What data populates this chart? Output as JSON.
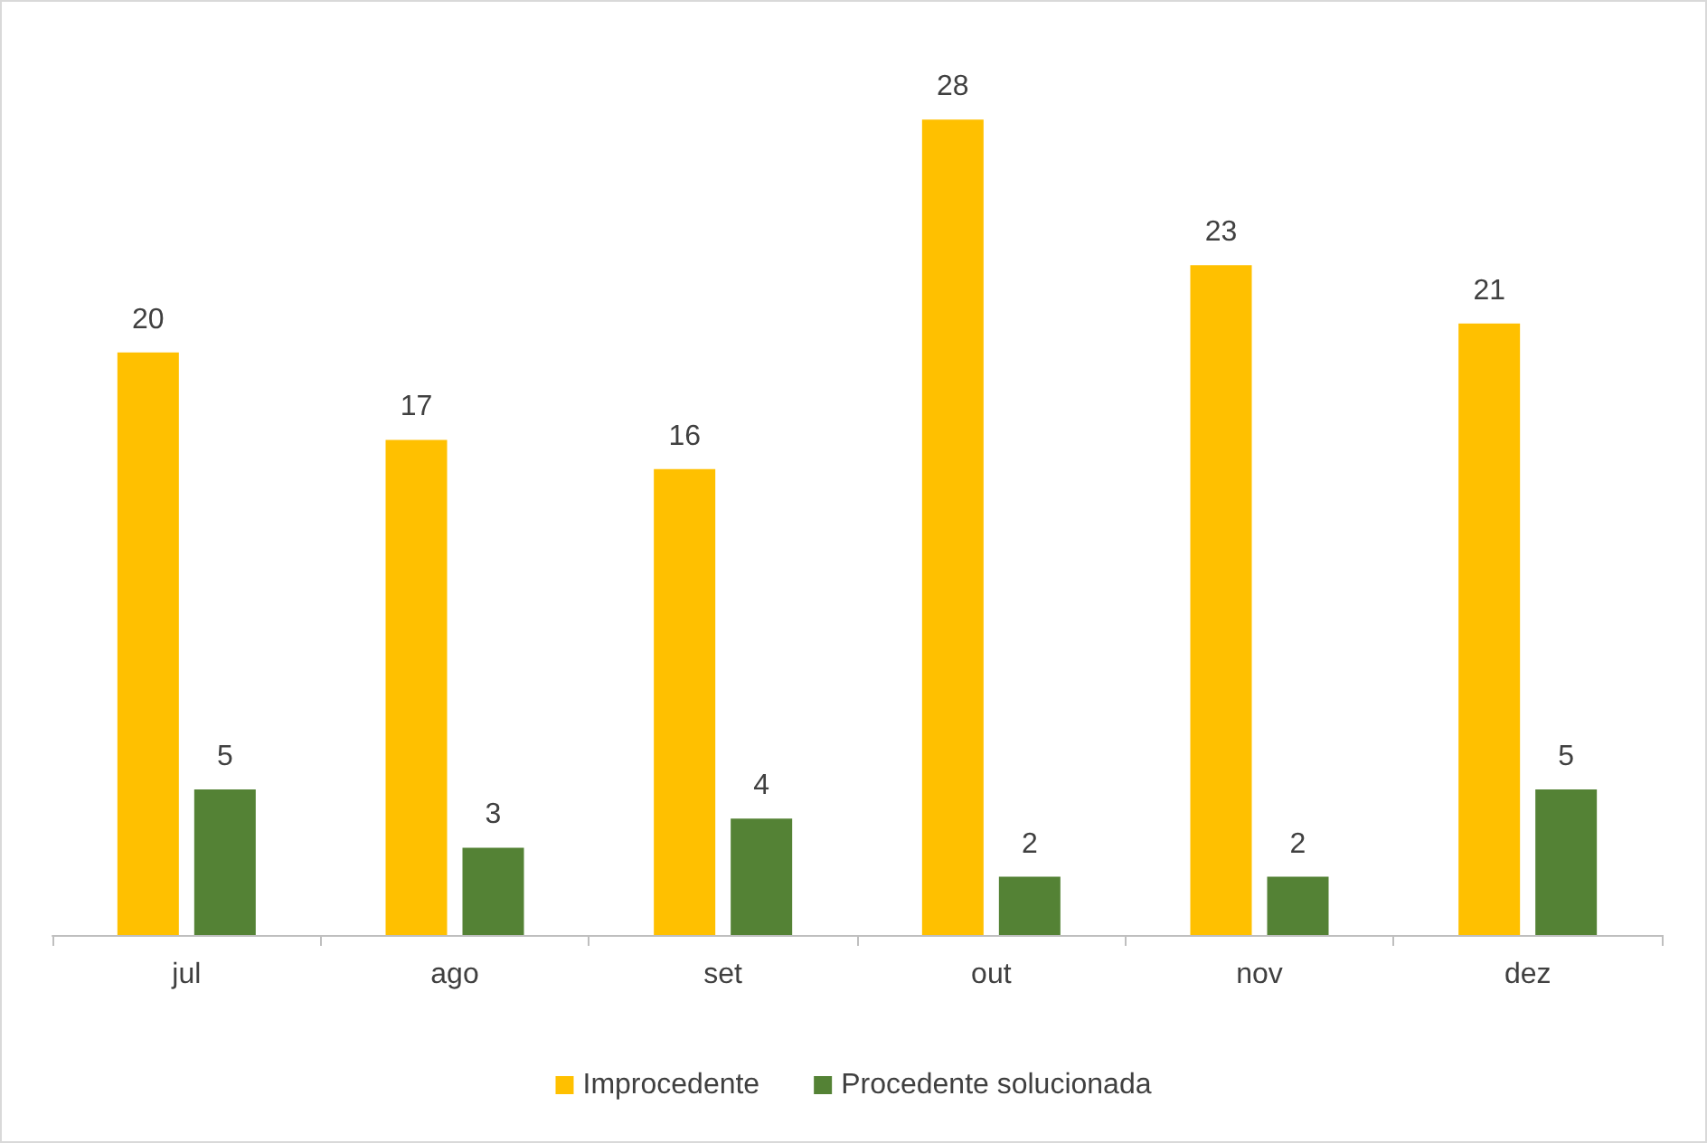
{
  "chart_data": {
    "type": "bar",
    "categories": [
      "jul",
      "ago",
      "set",
      "out",
      "nov",
      "dez"
    ],
    "series": [
      {
        "name": "Improcedente",
        "color": "#ffc000",
        "values": [
          20,
          17,
          16,
          28,
          23,
          21
        ]
      },
      {
        "name": "Procedente solucionada",
        "color": "#548235",
        "values": [
          5,
          3,
          4,
          2,
          2,
          5
        ]
      }
    ],
    "data_labels": true,
    "legend": "bottom",
    "grid": false,
    "tick_labels": "x"
  }
}
